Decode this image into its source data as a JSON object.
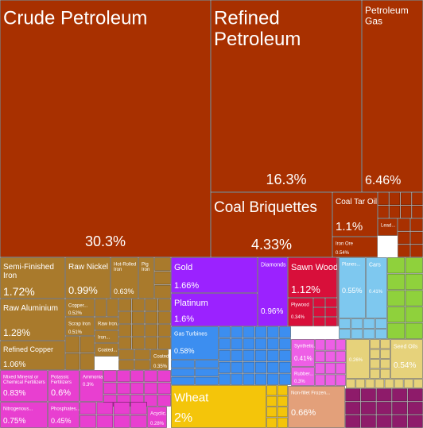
{
  "chart_data": {
    "type": "treemap",
    "colors": {
      "mineral_products": "#a83000",
      "metals": "#a97a2c",
      "precious_metals": "#9b22ff",
      "wood_products": "#d80f3a",
      "transportation_machinery": "#7ec8ef",
      "vegetable_products": "#f4c50a",
      "chemical_products": "#e83fd0",
      "plastics_rubbers": "#ee5fe6",
      "machines": "#3c8ef0",
      "animal_products": "#e3a07a",
      "foodstuffs": "#e6d27b",
      "other": "#8fd13c",
      "textiles": "#8e1b6a"
    },
    "tiles": [
      {
        "id": "crude-petroleum",
        "name": "Crude Petroleum",
        "share": "30.3%",
        "value": 30.3,
        "group": "mineral_products"
      },
      {
        "id": "refined-petroleum",
        "name": "Refined Petroleum",
        "share": "16.3%",
        "value": 16.3,
        "group": "mineral_products"
      },
      {
        "id": "petroleum-gas",
        "name": "Petroleum Gas",
        "share": "6.46%",
        "value": 6.46,
        "group": "mineral_products"
      },
      {
        "id": "coal-briquettes",
        "name": "Coal Briquettes",
        "share": "4.33%",
        "value": 4.33,
        "group": "mineral_products"
      },
      {
        "id": "coal-tar-oil",
        "name": "Coal Tar Oil",
        "share": "1.1%",
        "value": 1.1,
        "group": "mineral_products"
      },
      {
        "id": "iron-ore",
        "name": "Iron Ore",
        "share": "0.54%",
        "value": 0.54,
        "group": "mineral_products"
      },
      {
        "id": "lead-ore",
        "name": "Lead...",
        "share": "",
        "value": null,
        "group": "mineral_products"
      },
      {
        "id": "semi-finished-iron",
        "name": "Semi-Finished Iron",
        "share": "1.72%",
        "value": 1.72,
        "group": "metals"
      },
      {
        "id": "raw-aluminium",
        "name": "Raw Aluminium",
        "share": "1.28%",
        "value": 1.28,
        "group": "metals"
      },
      {
        "id": "refined-copper",
        "name": "Refined Copper",
        "share": "1.06%",
        "value": 1.06,
        "group": "metals"
      },
      {
        "id": "raw-nickel",
        "name": "Raw Nickel",
        "share": "0.99%",
        "value": 0.99,
        "group": "metals"
      },
      {
        "id": "hot-rolled-iron",
        "name": "Hot-Rolled Iron",
        "share": "0.63%",
        "value": 0.63,
        "group": "metals"
      },
      {
        "id": "pig-iron",
        "name": "Pig Iron",
        "share": "",
        "value": null,
        "group": "metals"
      },
      {
        "id": "copper",
        "name": "Copper...",
        "share": "0.52%",
        "value": 0.52,
        "group": "metals"
      },
      {
        "id": "scrap-iron",
        "name": "Scrap Iron",
        "share": "0.51%",
        "value": 0.51,
        "group": "metals"
      },
      {
        "id": "raw-iron",
        "name": "Raw Iron...",
        "share": "",
        "value": null,
        "group": "metals"
      },
      {
        "id": "iron-misc",
        "name": "Iron...",
        "share": "",
        "value": null,
        "group": "metals"
      },
      {
        "id": "coated-1",
        "name": "Coated...",
        "share": "",
        "value": null,
        "group": "metals"
      },
      {
        "id": "coated-2",
        "name": "Coated...",
        "share": "0.35%",
        "value": 0.35,
        "group": "metals"
      },
      {
        "id": "gold",
        "name": "Gold",
        "share": "1.66%",
        "value": 1.66,
        "group": "precious_metals"
      },
      {
        "id": "platinum",
        "name": "Platinum",
        "share": "1.6%",
        "value": 1.6,
        "group": "precious_metals"
      },
      {
        "id": "diamonds",
        "name": "Diamonds",
        "share": "0.96%",
        "value": 0.96,
        "group": "precious_metals"
      },
      {
        "id": "sawn-wood",
        "name": "Sawn Wood",
        "share": "1.12%",
        "value": 1.12,
        "group": "wood_products"
      },
      {
        "id": "plywood",
        "name": "Plywood",
        "share": "0.34%",
        "value": 0.34,
        "group": "wood_products"
      },
      {
        "id": "planes",
        "name": "Planes...",
        "share": "0.55%",
        "value": 0.55,
        "group": "transportation_machinery"
      },
      {
        "id": "cars",
        "name": "Cars",
        "share": "0.41%",
        "value": 0.41,
        "group": "transportation_machinery"
      },
      {
        "id": "gas-turbines",
        "name": "Gas Turbines",
        "share": "0.58%",
        "value": 0.58,
        "group": "machines"
      },
      {
        "id": "wheat",
        "name": "Wheat",
        "share": "2%",
        "value": 2,
        "group": "vegetable_products"
      },
      {
        "id": "synthetic",
        "name": "Synthetic...",
        "share": "0.41%",
        "value": 0.41,
        "group": "plastics_rubbers"
      },
      {
        "id": "rubber",
        "name": "Rubber...",
        "share": "0.3%",
        "value": 0.3,
        "group": "plastics_rubbers"
      },
      {
        "id": "seed-oils",
        "name": "Seed Oils",
        "share": "0.54%",
        "value": 0.54,
        "group": "foodstuffs"
      },
      {
        "id": "foodstuff-2",
        "name": "",
        "share": "0.26%",
        "value": 0.26,
        "group": "foodstuffs"
      },
      {
        "id": "non-fillet-frozen",
        "name": "Non-fillet Frozen...",
        "share": "0.66%",
        "value": 0.66,
        "group": "animal_products"
      },
      {
        "id": "mixed-mineral",
        "name": "Mixed Mineral or Chemical Fertilizers",
        "share": "0.83%",
        "value": 0.83,
        "group": "chemical_products"
      },
      {
        "id": "potassic-fertilizers",
        "name": "Potassic Fertilizers",
        "share": "0.6%",
        "value": 0.6,
        "group": "chemical_products"
      },
      {
        "id": "nitrogenous",
        "name": "Nitrogenous...",
        "share": "0.75%",
        "value": 0.75,
        "group": "chemical_products"
      },
      {
        "id": "ammonia",
        "name": "Ammonia",
        "share": "0.3%",
        "value": 0.3,
        "group": "chemical_products"
      },
      {
        "id": "phosphates",
        "name": "Phosphates...",
        "share": "0.45%",
        "value": 0.45,
        "group": "chemical_products"
      },
      {
        "id": "chem-small",
        "name": "Acyclic...",
        "share": "0.28%",
        "value": 0.28,
        "group": "chemical_products"
      }
    ]
  }
}
